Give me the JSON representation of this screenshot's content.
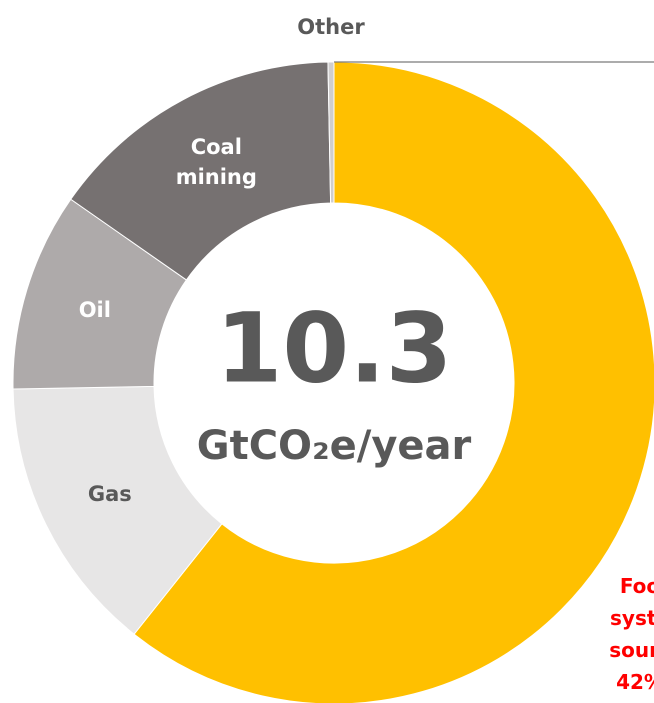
{
  "chart_data": {
    "type": "donut",
    "categories": [
      "Food system",
      "Gas",
      "Oil",
      "Coal mining",
      "Other"
    ],
    "values": [
      60.7,
      14,
      10,
      15,
      0.3
    ],
    "colors": [
      "#FFC000",
      "#E7E6E6",
      "#AEAAAA",
      "#767171",
      "#D0CECE"
    ],
    "center_value": "10.3",
    "center_unit": "GtCO₂e/year",
    "annotation": [
      "Foo",
      "syste",
      "sourc",
      "42%"
    ]
  }
}
